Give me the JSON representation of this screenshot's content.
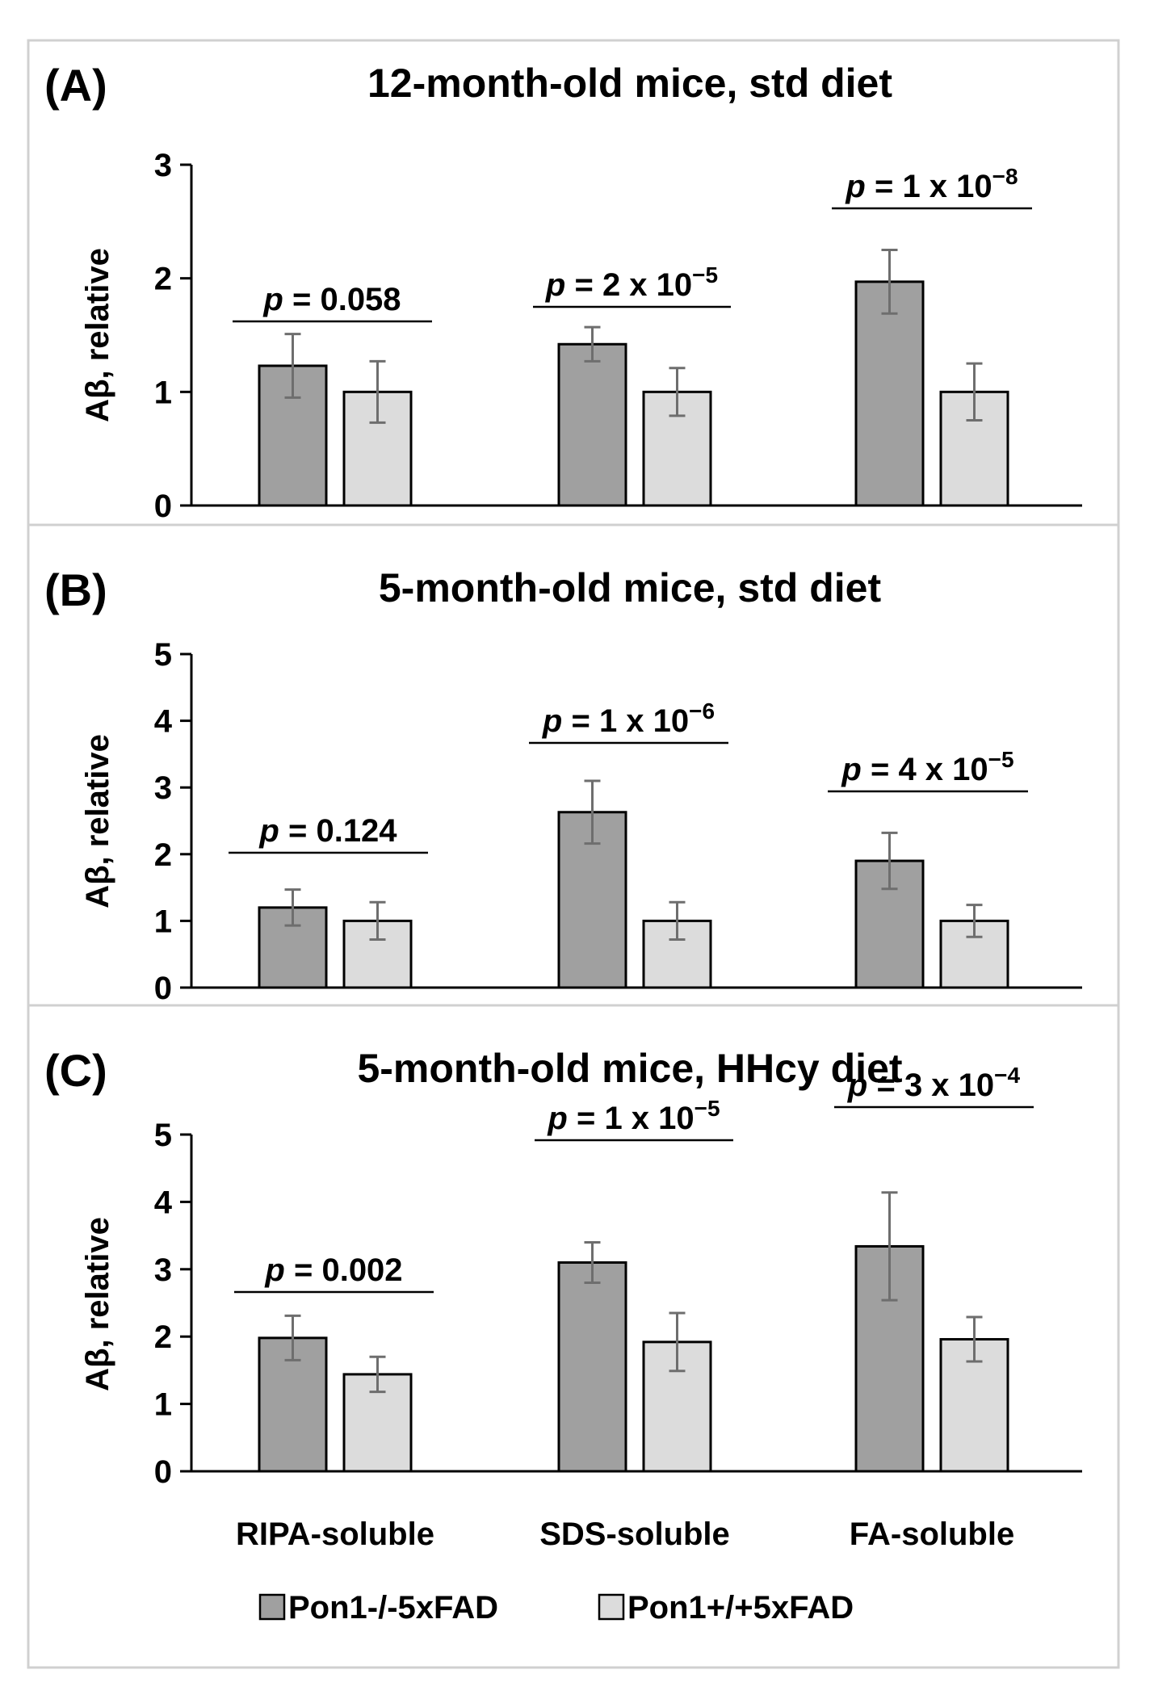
{
  "colors": {
    "series1": "#a0a0a0",
    "series2": "#dcdcdc",
    "axis": "#000000",
    "error": "#6e6e6e",
    "frame": "#d0d0d0"
  },
  "legend": {
    "items": [
      "Pon1-/-5xFAD",
      "Pon1+/+5xFAD"
    ]
  },
  "chart_data": [
    {
      "type": "bar",
      "panel_label": "(A)",
      "title": "12-month-old mice, std diet",
      "ylabel": "Aβ, relative",
      "ylim": [
        0,
        3
      ],
      "yticks": [
        "0",
        "1",
        "2",
        "3"
      ],
      "categories": [
        "RIPA-soluble",
        "SDS-soluble",
        "FA-soluble"
      ],
      "series": [
        {
          "name": "Pon1-/-5xFAD",
          "values": [
            1.23,
            1.42,
            1.97
          ],
          "errors": [
            0.28,
            0.15,
            0.28
          ]
        },
        {
          "name": "Pon1+/+5xFAD",
          "values": [
            1.0,
            1.0,
            1.0
          ],
          "errors": [
            0.27,
            0.21,
            0.25
          ]
        }
      ],
      "pvalues": [
        {
          "p": "p",
          "eq": " = ",
          "value": "0.058",
          "sup": ""
        },
        {
          "p": "p",
          "eq": " = ",
          "value": "2 x 10",
          "sup": "−5"
        },
        {
          "p": "p",
          "eq": " = ",
          "value": "1 x 10",
          "sup": "−8"
        }
      ]
    },
    {
      "type": "bar",
      "panel_label": "(B)",
      "title": "5-month-old mice, std diet",
      "ylabel": "Aβ, relative",
      "ylim": [
        0,
        5
      ],
      "yticks": [
        "0",
        "1",
        "2",
        "3",
        "4",
        "5"
      ],
      "categories": [
        "RIPA-soluble",
        "SDS-soluble",
        "FA-soluble"
      ],
      "series": [
        {
          "name": "Pon1-/-5xFAD",
          "values": [
            1.2,
            2.63,
            1.9
          ],
          "errors": [
            0.27,
            0.47,
            0.42
          ]
        },
        {
          "name": "Pon1+/+5xFAD",
          "values": [
            1.0,
            1.0,
            1.0
          ],
          "errors": [
            0.28,
            0.28,
            0.24
          ]
        }
      ],
      "pvalues": [
        {
          "p": "p",
          "eq": " = ",
          "value": "0.124",
          "sup": ""
        },
        {
          "p": "p",
          "eq": " = ",
          "value": "1 x 10",
          "sup": "−6"
        },
        {
          "p": "p",
          "eq": " = ",
          "value": "4 x 10",
          "sup": "−5"
        }
      ]
    },
    {
      "type": "bar",
      "panel_label": "(C)",
      "title": "5-month-old mice, HHcy diet",
      "ylabel": "Aβ, relative",
      "ylim": [
        0,
        5
      ],
      "yticks": [
        "0",
        "1",
        "2",
        "3",
        "4",
        "5"
      ],
      "categories": [
        "RIPA-soluble",
        "SDS-soluble",
        "FA-soluble"
      ],
      "series": [
        {
          "name": "Pon1-/-5xFAD",
          "values": [
            1.98,
            3.1,
            3.34
          ],
          "errors": [
            0.33,
            0.3,
            0.8
          ]
        },
        {
          "name": "Pon1+/+5xFAD",
          "values": [
            1.44,
            1.92,
            1.96
          ],
          "errors": [
            0.26,
            0.43,
            0.33
          ]
        }
      ],
      "pvalues": [
        {
          "p": "p",
          "eq": " = ",
          "value": "0.002",
          "sup": ""
        },
        {
          "p": "p",
          "eq": " = ",
          "value": "1 x 10",
          "sup": "−5"
        },
        {
          "p": "p",
          "eq": " = ",
          "value": "3 x 10",
          "sup": "−4"
        }
      ]
    }
  ]
}
